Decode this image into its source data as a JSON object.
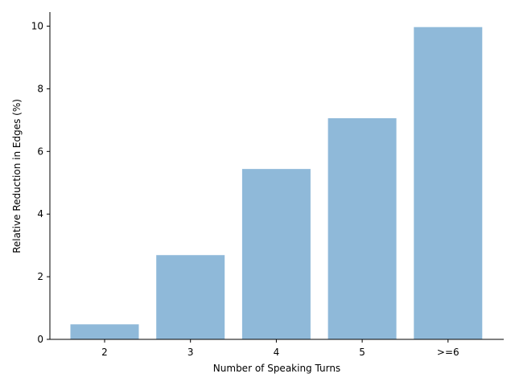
{
  "chart_data": {
    "type": "bar",
    "categories": [
      "2",
      "3",
      "4",
      "5",
      ">=6"
    ],
    "values": [
      0.48,
      2.69,
      5.44,
      7.06,
      9.97
    ],
    "title": "",
    "xlabel": "Number of Speaking Turns",
    "ylabel": "Relative Reduction in Edges (%)",
    "ylim": [
      0,
      10.45
    ],
    "yticks": [
      0,
      2,
      4,
      6,
      8,
      10
    ],
    "grid": false,
    "bar_color": "#8fb9d9",
    "axis_color": "#000000"
  }
}
